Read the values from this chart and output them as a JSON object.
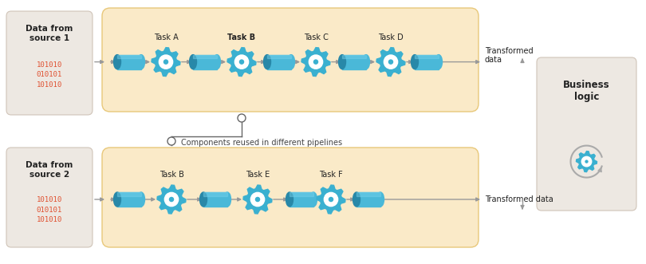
{
  "bg_color": "#ffffff",
  "pipeline_bg": "#faeac8",
  "pipeline_border": "#e8c87a",
  "source_box_bg": "#ede8e2",
  "source_box_border": "#d0c4b8",
  "business_box_bg": "#ede8e2",
  "business_box_border": "#d0c4b8",
  "pipe_color": "#4ab8d8",
  "pipe_dark": "#2888a8",
  "pipe_highlight": "#7ad4ee",
  "gear_color": "#3ab0d0",
  "gear_inner": "#ffffff",
  "gear_center": "#3ab0d0",
  "arrow_color": "#999999",
  "text_color": "#222222",
  "red_text": "#e05030",
  "source1_title": "Data from\nsource 1",
  "source1_data": "101010\n010101\n101010",
  "source2_title": "Data from\nsource 2",
  "source2_data": "101010\n010101\n101010",
  "business_title": "Business\nlogic",
  "annotation": "Components reused in different pipelines",
  "transformed_data1": "Transformed\ndata",
  "transformed_data2": "Transformed data",
  "p1_tasks": [
    "Task A",
    "Task B",
    "Task C",
    "Task D"
  ],
  "p1_bold": [
    false,
    true,
    false,
    false
  ],
  "p2_tasks": [
    "Task B",
    "Task E",
    "Task F"
  ],
  "p2_bold": [
    false,
    false,
    false
  ]
}
